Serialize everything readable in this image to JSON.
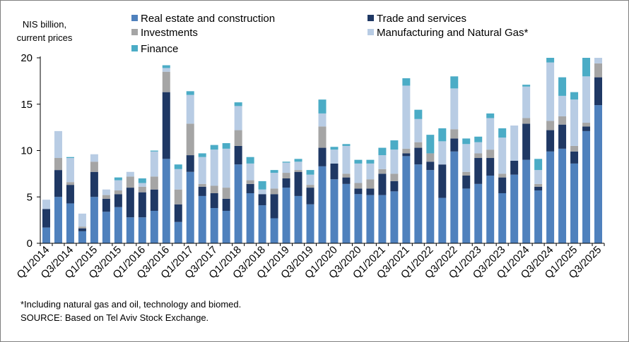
{
  "chart_data": {
    "type": "bar",
    "stacked": true,
    "ylabel": "NIS billion, current prices",
    "ylabel_lines": [
      "NIS billion,",
      "current prices"
    ],
    "ylim": [
      0,
      20
    ],
    "yticks": [
      0,
      5,
      10,
      15,
      20
    ],
    "grid": false,
    "legend_position": "top",
    "categories": [
      "Q1/2014",
      "Q2/2014",
      "Q3/2014",
      "Q4/2014",
      "Q1/2015",
      "Q2/2015",
      "Q3/2015",
      "Q4/2015",
      "Q1/2016",
      "Q2/2016",
      "Q3/2016",
      "Q4/2016",
      "Q1/2017",
      "Q2/2017",
      "Q3/2017",
      "Q4/2017",
      "Q1/2018",
      "Q2/2018",
      "Q3/2018",
      "Q4/2018",
      "Q1/2019",
      "Q2/2019",
      "Q3/2019",
      "Q4/2019",
      "Q1/2020",
      "Q2/2020",
      "Q3/2020",
      "Q4/2020",
      "Q1/2021",
      "Q2/2021",
      "Q3/2021",
      "Q4/2021",
      "Q1/2022",
      "Q2/2022",
      "Q3/2022",
      "Q4/2022",
      "Q1/2023",
      "Q2/2023",
      "Q3/2023",
      "Q4/2023",
      "Q1/2024",
      "Q2/2024",
      "Q3/2024",
      "Q4/2024",
      "Q1/2025",
      "Q2/2025",
      "Q3/2025"
    ],
    "tick_labels": [
      "Q1/2014",
      "Q3/2014",
      "Q1/2015",
      "Q3/2015",
      "Q1/2016",
      "Q3/2016",
      "Q1/2017",
      "Q3/2017",
      "Q1/2018",
      "Q3/2018",
      "Q1/2019",
      "Q3/2019",
      "Q1/2020",
      "Q3/2020",
      "Q1/2021",
      "Q3/2021",
      "Q1/2022",
      "Q3/2022",
      "Q1/2023",
      "Q3/2023",
      "Q1/2024",
      "Q3/2024",
      "Q1/2025",
      "Q3/2025"
    ],
    "series": [
      {
        "name": "Real estate and construction",
        "color": "#4f81bd",
        "values": [
          1.7,
          5.0,
          4.3,
          1.3,
          5.0,
          3.4,
          3.9,
          2.8,
          2.8,
          3.5,
          9.1,
          2.3,
          7.7,
          5.1,
          3.8,
          3.5,
          8.5,
          5.4,
          4.1,
          2.7,
          6.0,
          5.1,
          4.2,
          8.3,
          6.9,
          6.4,
          5.3,
          5.2,
          5.2,
          5.6,
          9.4,
          8.5,
          7.9,
          4.9,
          9.9,
          5.9,
          6.4,
          7.3,
          5.4,
          7.4,
          9.0,
          5.7,
          9.9,
          10.2,
          8.6,
          12.1,
          14.9
        ]
      },
      {
        "name": "Trade and services",
        "color": "#1f3864",
        "values": [
          2.0,
          2.9,
          2.0,
          0.3,
          2.7,
          1.4,
          1.4,
          3.2,
          2.7,
          2.3,
          7.2,
          1.9,
          1.8,
          1.0,
          1.6,
          1.3,
          2.0,
          1.0,
          1.2,
          2.6,
          1.0,
          2.6,
          1.8,
          2.0,
          1.7,
          0.7,
          0.6,
          0.7,
          2.3,
          1.1,
          0.3,
          1.8,
          0.9,
          3.6,
          1.4,
          1.4,
          2.8,
          1.9,
          1.7,
          1.5,
          3.9,
          0.4,
          2.3,
          2.6,
          1.3,
          0.5,
          3.0
        ]
      },
      {
        "name": "Investments",
        "color": "#a5a5a5",
        "values": [
          0.0,
          1.3,
          0.3,
          0.2,
          1.1,
          0.4,
          0.4,
          1.2,
          0.6,
          1.4,
          2.2,
          1.6,
          3.4,
          0.3,
          0.8,
          1.2,
          1.7,
          0.4,
          0.0,
          0.6,
          0.6,
          0.2,
          0.3,
          2.3,
          0.0,
          0.4,
          0.6,
          1.0,
          0.5,
          0.8,
          0.5,
          0.6,
          0.9,
          0.0,
          1.0,
          0.4,
          0.5,
          0.9,
          0.4,
          0.0,
          0.6,
          0.3,
          1.0,
          0.9,
          0.6,
          0.4,
          1.5
        ]
      },
      {
        "name": "Manufacturing and Natural Gas*",
        "color": "#b8cce4",
        "values": [
          1.0,
          2.9,
          2.6,
          1.4,
          0.8,
          0.6,
          1.1,
          0.5,
          0.4,
          2.7,
          0.4,
          2.2,
          3.1,
          2.9,
          3.9,
          4.2,
          2.6,
          1.8,
          0.5,
          1.7,
          1.1,
          0.9,
          1.1,
          1.4,
          1.5,
          3.0,
          2.1,
          1.7,
          1.5,
          2.6,
          6.8,
          2.5,
          0.0,
          2.5,
          4.4,
          3.0,
          1.2,
          3.4,
          3.9,
          3.8,
          3.4,
          1.5,
          6.3,
          2.2,
          5.0,
          5.0,
          0.6
        ]
      },
      {
        "name": "Finance",
        "color": "#4bacc6",
        "values": [
          0.0,
          0.0,
          0.1,
          0.0,
          0.0,
          0.0,
          0.3,
          0.0,
          0.5,
          0.1,
          0.3,
          0.5,
          0.4,
          0.4,
          0.5,
          0.6,
          0.4,
          0.7,
          0.9,
          0.3,
          0.1,
          0.3,
          0.5,
          1.5,
          0.3,
          0.2,
          0.4,
          0.4,
          0.8,
          1.0,
          0.8,
          1.0,
          2.0,
          1.4,
          1.3,
          0.6,
          0.6,
          0.5,
          1.0,
          0.0,
          0.2,
          1.2,
          0.5,
          2.0,
          0.8,
          2.0,
          0.0
        ]
      }
    ]
  },
  "notes": {
    "footnote": "*Including natural gas and oil, technology and biomed.",
    "source": "SOURCE: Based on Tel Aviv Stock Exchange."
  }
}
